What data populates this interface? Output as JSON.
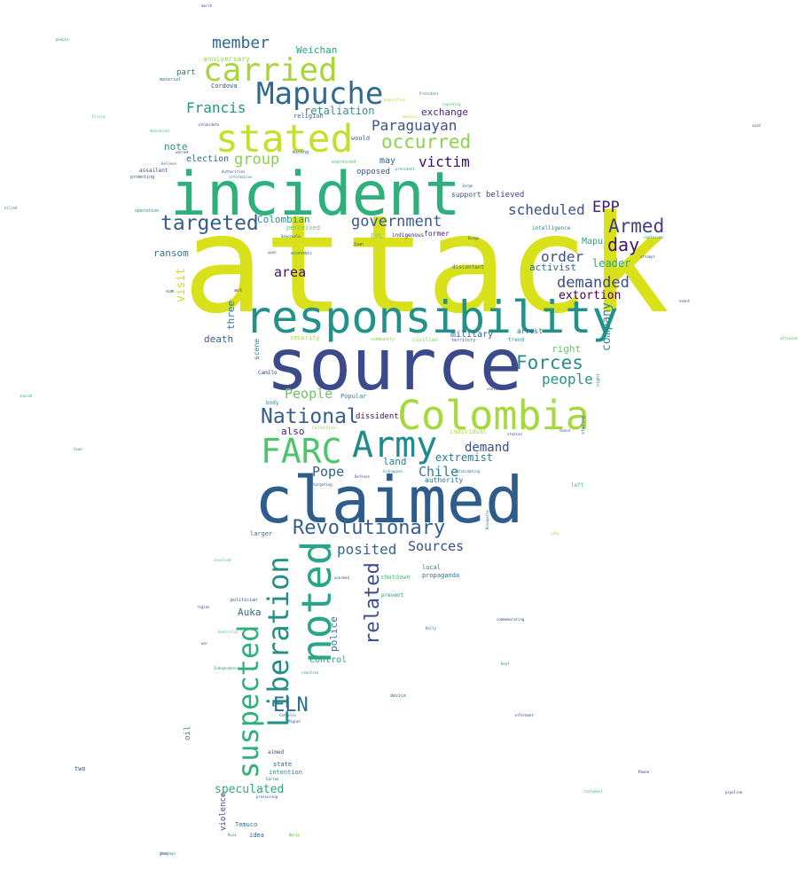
{
  "words": [
    {
      "text": "attack",
      "color": "#d9e11a"
    },
    {
      "text": "source",
      "color": "#3b4a8a"
    },
    {
      "text": "claimed",
      "color": "#2e5d8c"
    },
    {
      "text": "incident",
      "color": "#2db07c"
    },
    {
      "text": "responsibility",
      "color": "#22918a"
    },
    {
      "text": "Colombia",
      "color": "#a6d93b"
    },
    {
      "text": "noted",
      "color": "#2aa58a"
    },
    {
      "text": "Mapuche",
      "color": "#2f6a8f"
    },
    {
      "text": "stated",
      "color": "#c6df2b"
    },
    {
      "text": "carried",
      "color": "#a8d43c"
    },
    {
      "text": "Army",
      "color": "#1f8b8c"
    },
    {
      "text": "FARC",
      "color": "#4ec46c"
    },
    {
      "text": "Liberation",
      "color": "#238f88"
    },
    {
      "text": "suspected",
      "color": "#30b17b"
    },
    {
      "text": "Revolutionary",
      "color": "#325f90"
    },
    {
      "text": "National",
      "color": "#345c8d"
    },
    {
      "text": "related",
      "color": "#3c4d8c"
    },
    {
      "text": "targeted",
      "color": "#355d8c"
    },
    {
      "text": "Armed",
      "color": "#3f3f86"
    },
    {
      "text": "ELN",
      "color": "#2e6f8e"
    },
    {
      "text": "government",
      "color": "#365b8c"
    },
    {
      "text": "Forces",
      "color": "#2a8c8a"
    },
    {
      "text": "occurred",
      "color": "#8ed34a"
    },
    {
      "text": "member",
      "color": "#32688e"
    },
    {
      "text": "demanded",
      "color": "#3e4c8a"
    },
    {
      "text": "Francis",
      "color": "#229684"
    },
    {
      "text": "group",
      "color": "#8ace4e"
    },
    {
      "text": "Paraguayan",
      "color": "#3a548c"
    },
    {
      "text": "victim",
      "color": "#3b0f6f"
    },
    {
      "text": "scheduled",
      "color": "#3a4f8a"
    },
    {
      "text": "EPP",
      "color": "#3b1f72"
    },
    {
      "text": "day",
      "color": "#42136f"
    },
    {
      "text": "order",
      "color": "#3b528b"
    },
    {
      "text": "area",
      "color": "#46105f"
    },
    {
      "text": "People",
      "color": "#6cc564"
    },
    {
      "text": "people",
      "color": "#2a918a"
    },
    {
      "text": "Pope",
      "color": "#33628d"
    },
    {
      "text": "Sources",
      "color": "#3a4c8a"
    },
    {
      "text": "posited",
      "color": "#30678e"
    },
    {
      "text": "Chile",
      "color": "#2f7f8d"
    },
    {
      "text": "demand",
      "color": "#3a4d8a"
    },
    {
      "text": "extremist",
      "color": "#2b7b8e"
    },
    {
      "text": "speculated",
      "color": "#30a67f"
    },
    {
      "text": "visit",
      "color": "#c9dd2a"
    },
    {
      "text": "company",
      "color": "#2c8a8c"
    },
    {
      "text": "extortion",
      "color": "#440154"
    },
    {
      "text": "Colombian",
      "color": "#2a9288"
    },
    {
      "text": "Weichan",
      "color": "#27a585"
    },
    {
      "text": "retaliation",
      "color": "#3a8e8c"
    },
    {
      "text": "exchange",
      "color": "#4a1f74"
    },
    {
      "text": "ransom",
      "color": "#2a7a8e"
    },
    {
      "text": "leader",
      "color": "#33a08a"
    },
    {
      "text": "right",
      "color": "#6ac66a"
    },
    {
      "text": "activist",
      "color": "#2e6b8e"
    },
    {
      "text": "Auka",
      "color": "#2f6a8c"
    },
    {
      "text": "police",
      "color": "#2c788e"
    },
    {
      "text": "control",
      "color": "#30a57f"
    },
    {
      "text": "death",
      "color": "#3a5d8c"
    },
    {
      "text": "three",
      "color": "#2b778e"
    },
    {
      "text": "also",
      "color": "#3b1f72"
    },
    {
      "text": "land",
      "color": "#2c7f8e"
    },
    {
      "text": "note",
      "color": "#2a8f8a"
    },
    {
      "text": "election",
      "color": "#2b6d8e"
    },
    {
      "text": "may",
      "color": "#2f5f8d"
    },
    {
      "text": "military",
      "color": "#31648e"
    },
    {
      "text": "dissident",
      "color": "#46105f"
    },
    {
      "text": "Mapu",
      "color": "#2aa08a"
    },
    {
      "text": "anniversary",
      "color": "#97d04a"
    },
    {
      "text": "part",
      "color": "#2e6e8e"
    },
    {
      "text": "Cordova",
      "color": "#2e4e8a"
    },
    {
      "text": "religion",
      "color": "#2c6c8e"
    },
    {
      "text": "opposed",
      "color": "#3b4f8a"
    },
    {
      "text": "believed",
      "color": "#3b418a"
    },
    {
      "text": "support",
      "color": "#35578c"
    },
    {
      "text": "former",
      "color": "#4c2a7a"
    },
    {
      "text": "arrest",
      "color": "#2a768e"
    },
    {
      "text": "scene",
      "color": "#2a7f8e"
    },
    {
      "text": "oil",
      "color": "#2a9389"
    },
    {
      "text": "violence",
      "color": "#3d4d8a"
    },
    {
      "text": "authority",
      "color": "#2a6d8e"
    },
    {
      "text": "two",
      "color": "#2e5d8c"
    },
    {
      "text": "Temuco",
      "color": "#2e6e8e"
    },
    {
      "text": "idea",
      "color": "#2d5e8c"
    },
    {
      "text": "state",
      "color": "#2a6b8e"
    },
    {
      "text": "intention",
      "color": "#2a848c"
    },
    {
      "text": "aimed",
      "color": "#3a4d8a"
    },
    {
      "text": "larger",
      "color": "#2e6e8e"
    },
    {
      "text": "shutdown",
      "color": "#4cc06f"
    },
    {
      "text": "local",
      "color": "#2e7e8d"
    },
    {
      "text": "propaganda",
      "color": "#2e6e8e"
    },
    {
      "text": "prevent",
      "color": "#2a8a8a"
    },
    {
      "text": "EPL",
      "color": "#8fd44b"
    },
    {
      "text": "indigenous",
      "color": "#3e1f74"
    },
    {
      "text": "economic",
      "color": "#2c748e"
    },
    {
      "text": "perceived",
      "color": "#6ec466"
    },
    {
      "text": "security",
      "color": "#a6d93b"
    },
    {
      "text": "civilian",
      "color": "#8ccf4d"
    },
    {
      "text": "community",
      "color": "#8ccf4d"
    },
    {
      "text": "body",
      "color": "#2a8c8a"
    },
    {
      "text": "Popular",
      "color": "#2a8c8a"
    },
    {
      "text": "individual",
      "color": "#b4da34"
    },
    {
      "text": "Celestino",
      "color": "#9ad44a"
    },
    {
      "text": "territory",
      "color": "#2e5d8c"
    },
    {
      "text": "trend",
      "color": "#2a8f8a"
    },
    {
      "text": "Camilo",
      "color": "#2e4e8a"
    },
    {
      "text": "act",
      "color": "#3b2a72"
    },
    {
      "text": "intelligence",
      "color": "#2e7e8d"
    },
    {
      "text": "discontent",
      "color": "#2e6e8e"
    },
    {
      "text": "assailant",
      "color": "#3b4f8a"
    },
    {
      "text": "promoting",
      "color": "#2e5d8c"
    },
    {
      "text": "operation",
      "color": "#2a8c8a"
    },
    {
      "text": "material",
      "color": "#2e6e8e"
    },
    {
      "text": "intimidate",
      "color": "#2e4e8a"
    },
    {
      "text": "mining",
      "color": "#2e5d8c"
    },
    {
      "text": "expressed",
      "color": "#4cc06f"
    },
    {
      "text": "would",
      "color": "#3a6e8e"
    },
    {
      "text": "regarding",
      "color": "#4cc06f"
    },
    {
      "text": "President",
      "color": "#2a8f8a"
    },
    {
      "text": "population",
      "color": "#b4da34"
    },
    {
      "text": "america",
      "color": "#b4da34"
    },
    {
      "text": "Authorities",
      "color": "#2e4e8a"
    },
    {
      "text": "information",
      "color": "#2a8c8a"
    },
    {
      "text": "president",
      "color": "#2a8f8a"
    },
    {
      "text": "contained",
      "color": "#2a8f8a"
    },
    {
      "text": "attempt",
      "color": "#2e6e8e"
    },
    {
      "text": "Venezuela",
      "color": "#2e4e8a"
    },
    {
      "text": "Juan",
      "color": "#2e4e8a"
    },
    {
      "text": "denounced",
      "color": "#4cc06f"
    },
    {
      "text": "warned",
      "color": "#3a4d8a"
    },
    {
      "text": "believe",
      "color": "#2e6e8e"
    },
    {
      "text": "sum",
      "color": "#2e4e8a"
    },
    {
      "text": "kidnapped",
      "color": "#2a8f8a"
    },
    {
      "text": "Defense",
      "color": "#2e4e8a"
    },
    {
      "text": "targeting",
      "color": "#2e4e8a"
    },
    {
      "text": "intimidating",
      "color": "#2e6e8e"
    },
    {
      "text": "left",
      "color": "#4cc06f"
    },
    {
      "text": "continue",
      "color": "#3a4d8a"
    },
    {
      "text": "station",
      "color": "#2e4e8a"
    },
    {
      "text": "stating",
      "color": "#3a6e8e"
    },
    {
      "text": "night",
      "color": "#2a8f8a"
    },
    {
      "text": "owned",
      "color": "#2e6e8e"
    },
    {
      "text": "Bonaparte",
      "color": "#2e6e8e"
    },
    {
      "text": "city",
      "color": "#8ccf4d"
    },
    {
      "text": "involved",
      "color": "#4cc06f"
    },
    {
      "text": "politician",
      "color": "#2e4e8a"
    },
    {
      "text": "region",
      "color": "#2e4e8a"
    },
    {
      "text": "war",
      "color": "#2e4e8a"
    },
    {
      "text": "Independence",
      "color": "#2a8f8a"
    },
    {
      "text": "reaction",
      "color": "#2a8f8a"
    },
    {
      "text": "device",
      "color": "#2e6e8e"
    },
    {
      "text": "Catholic",
      "color": "#2e4e8a"
    },
    {
      "text": "informant",
      "color": "#2e4e8a"
    },
    {
      "text": "Pavon",
      "color": "#46105f"
    },
    {
      "text": "pipeline",
      "color": "#2e4e8a"
    },
    {
      "text": "statement",
      "color": "#4cc06f"
    },
    {
      "text": "Kelly",
      "color": "#2e6e8e"
    },
    {
      "text": "hostage",
      "color": "#2a8f8a"
    },
    {
      "text": "Boric",
      "color": "#4cc06f"
    },
    {
      "text": "Ruiz",
      "color": "#2e6e8e"
    },
    {
      "text": "Carlos",
      "color": "#2e4e8a"
    },
    {
      "text": "pressuring",
      "color": "#2e4e8a"
    },
    {
      "text": "march",
      "color": "#2e4e8a"
    },
    {
      "text": "people-",
      "color": "#2a8f8a"
    },
    {
      "text": "church",
      "color": "#2a8f8a"
    },
    {
      "text": "killed",
      "color": "#2a8f8a"
    },
    {
      "text": "town",
      "color": "#2a8f8a"
    },
    {
      "text": "attacked",
      "color": "#4cc06f"
    },
    {
      "text": "said",
      "color": "#2e4e8a"
    },
    {
      "text": "event",
      "color": "#2e4e8a"
    },
    {
      "text": "commemorating",
      "color": "#2e4e8a"
    },
    {
      "text": "Elvira",
      "color": "#4cc06f"
    },
    {
      "text": "beat",
      "color": "#2a8f8a"
    },
    {
      "text": "Guerrilla",
      "color": "#4cc06f"
    },
    {
      "text": "Jorge",
      "color": "#2e4e8a"
    },
    {
      "text": "Diego",
      "color": "#2e4e8a"
    },
    {
      "text": "unarmed",
      "color": "#2e4e8a"
    },
    {
      "text": "Miguel",
      "color": "#2e4e8a"
    },
    {
      "text": "upon",
      "color": "#2e4e8a"
    },
    {
      "text": "force",
      "color": "#b4da34"
    },
    {
      "text": "gang",
      "color": "#2e4e8a"
    }
  ]
}
